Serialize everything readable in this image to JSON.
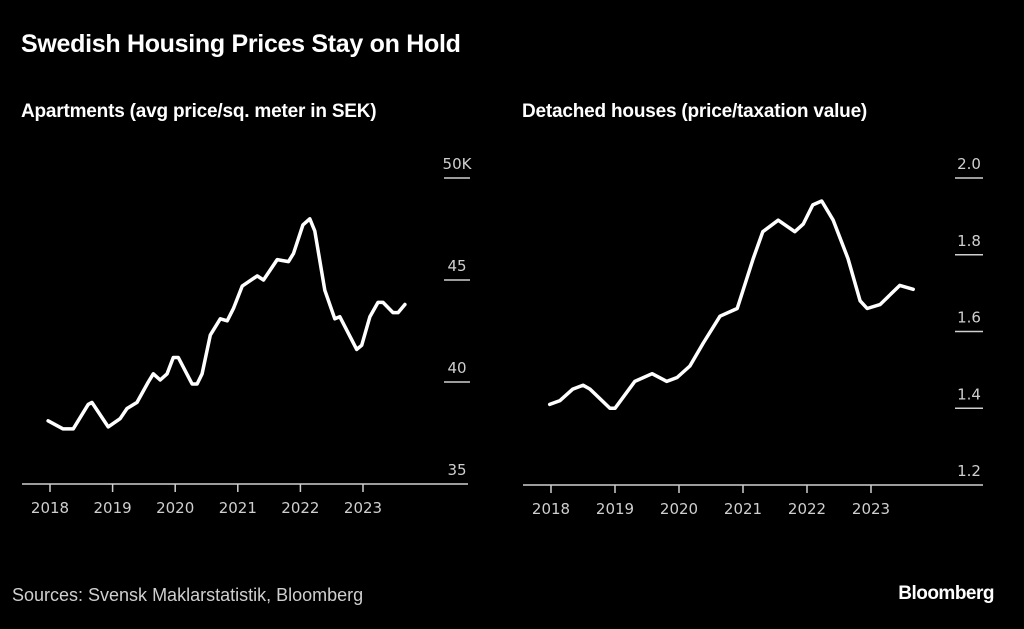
{
  "title": "Swedish Housing Prices Stay on Hold",
  "source": "Sources: Svensk Maklarstatistik, Bloomberg",
  "brand": "Bloomberg",
  "colors": {
    "background": "#000000",
    "line": "#ffffff",
    "axis": "#cfcfcf"
  },
  "chart_data": [
    {
      "type": "line",
      "title": "Apartments (avg price/sq. meter in SEK)",
      "xlabel": "",
      "ylabel": "",
      "xlim": [
        2017.95,
        2024.3
      ],
      "ylim": [
        35,
        50
      ],
      "x_ticks": [
        2018,
        2019,
        2020,
        2021,
        2022,
        2023
      ],
      "x_tick_labels": [
        "2018",
        "2019",
        "2020",
        "2021",
        "2022",
        "2023"
      ],
      "y_ticks": [
        35,
        40,
        45,
        50
      ],
      "y_tick_labels": [
        "35",
        "40",
        "45",
        "50K"
      ],
      "grid": false,
      "series": [
        {
          "name": "Apartments",
          "x": [
            2017.97,
            2018.21,
            2018.37,
            2018.61,
            2018.67,
            2018.93,
            2019.12,
            2019.23,
            2019.39,
            2019.57,
            2019.65,
            2019.76,
            2019.87,
            2019.97,
            2020.05,
            2020.27,
            2020.35,
            2020.43,
            2020.56,
            2020.72,
            2020.83,
            2020.93,
            2021.07,
            2021.31,
            2021.41,
            2021.63,
            2021.81,
            2021.89,
            2022.04,
            2022.15,
            2022.23,
            2022.39,
            2022.55,
            2022.63,
            2022.9,
            2022.98,
            2023.11,
            2023.24,
            2023.32,
            2023.48,
            2023.56,
            2023.67
          ],
          "values": [
            38.1,
            37.7,
            37.7,
            38.9,
            39.0,
            37.8,
            38.2,
            38.7,
            39.0,
            40.0,
            40.4,
            40.1,
            40.4,
            41.2,
            41.2,
            39.9,
            39.9,
            40.4,
            42.3,
            43.1,
            43.0,
            43.6,
            44.7,
            45.2,
            45.0,
            46.0,
            45.9,
            46.3,
            47.7,
            48.0,
            47.4,
            44.5,
            43.1,
            43.2,
            41.6,
            41.8,
            43.2,
            43.9,
            43.9,
            43.4,
            43.4,
            43.8
          ]
        }
      ]
    },
    {
      "type": "line",
      "title": "Detached houses (price/taxation value)",
      "xlabel": "",
      "ylabel": "",
      "xlim": [
        2017.95,
        2024.3
      ],
      "ylim": [
        1.2,
        2.0
      ],
      "x_ticks": [
        2018,
        2019,
        2020,
        2021,
        2022,
        2023
      ],
      "x_tick_labels": [
        "2018",
        "2019",
        "2020",
        "2021",
        "2022",
        "2023"
      ],
      "y_ticks": [
        1.2,
        1.4,
        1.6,
        1.8,
        2.0
      ],
      "y_tick_labels": [
        "1.2",
        "1.4",
        "1.6",
        "1.8",
        "2.0"
      ],
      "grid": false,
      "series": [
        {
          "name": "Detached houses",
          "x": [
            2017.98,
            2018.14,
            2018.34,
            2018.5,
            2018.61,
            2018.92,
            2019.0,
            2019.31,
            2019.58,
            2019.81,
            2019.97,
            2020.17,
            2020.38,
            2020.64,
            2020.91,
            2021.16,
            2021.31,
            2021.55,
            2021.81,
            2021.94,
            2022.09,
            2022.23,
            2022.41,
            2022.64,
            2022.83,
            2022.94,
            2023.14,
            2023.45,
            2023.66
          ],
          "values": [
            1.41,
            1.42,
            1.45,
            1.46,
            1.45,
            1.4,
            1.4,
            1.47,
            1.49,
            1.47,
            1.48,
            1.51,
            1.57,
            1.64,
            1.66,
            1.79,
            1.86,
            1.89,
            1.86,
            1.88,
            1.93,
            1.94,
            1.89,
            1.79,
            1.68,
            1.66,
            1.67,
            1.72,
            1.71
          ]
        }
      ]
    }
  ]
}
